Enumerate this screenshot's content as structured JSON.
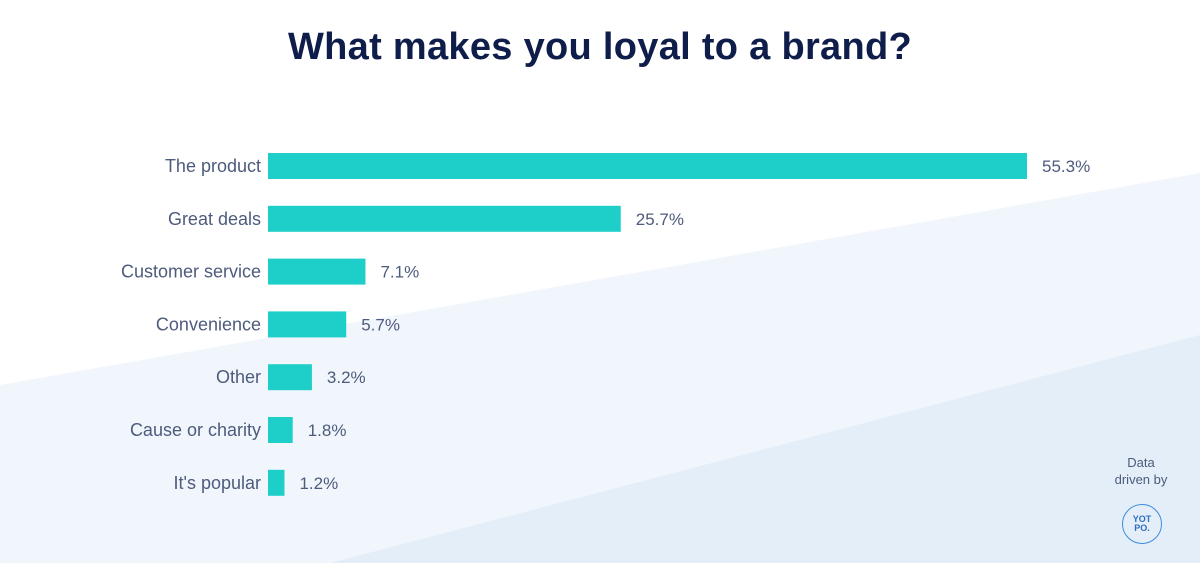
{
  "title": "What makes you loyal to a brand?",
  "credit": {
    "line1": "Data",
    "line2": "driven by",
    "logo_text": "YOT\nPO."
  },
  "colors": {
    "bar": "#1ecfc9",
    "title": "#0f1d4a",
    "label": "#4d5b7c",
    "background_light": "#eef4fc",
    "background_lighter": "#e3edf9"
  },
  "chart_data": {
    "type": "bar",
    "orientation": "horizontal",
    "title": "What makes you loyal to a brand?",
    "categories": [
      "The product",
      "Great deals",
      "Customer service",
      "Convenience",
      "Other",
      "Cause or charity",
      "It's popular"
    ],
    "values": [
      55.3,
      25.7,
      7.1,
      5.7,
      3.2,
      1.8,
      1.2
    ],
    "value_labels": [
      "55.3%",
      "25.7%",
      "7.1%",
      "5.7%",
      "3.2%",
      "1.8%",
      "1.2%"
    ],
    "unit": "%",
    "xlim": [
      0,
      55.3
    ],
    "grid": false,
    "legend": "none"
  }
}
